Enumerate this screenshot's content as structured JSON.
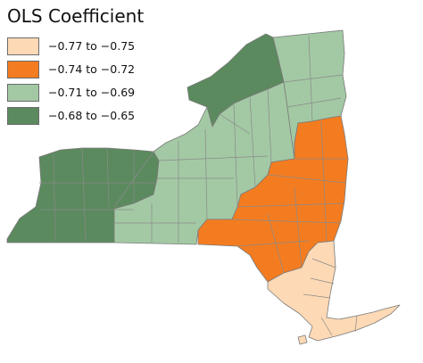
{
  "title": "OLS Coefficient",
  "legend": [
    {
      "label": "−0.77 to −0.75",
      "color": "#fdd9b5"
    },
    {
      "label": "−0.74 to −0.72",
      "color": "#f47c20"
    },
    {
      "label": "−0.71 to −0.69",
      "color": "#a3c9a4"
    },
    {
      "label": "−0.68 to −0.65",
      "color": "#5b8a5e"
    }
  ],
  "colors": {
    "border": "#7a7a7a",
    "background": "#ffffff"
  },
  "map": {
    "region": "New York State counties",
    "regions_by_class": {
      "class_1_lightest": "Long Island, New York City and lower Hudson Valley counties",
      "class_2_orange": "Hudson Valley, Catskills, Capital District and Southern Tier (Broome/Tioga/Chemung) counties",
      "class_3_light_green": "Central New York, Finger Lakes and North Country counties",
      "class_4_dark_green": "Western New York counties and St. Lawrence/Jefferson area"
    }
  }
}
